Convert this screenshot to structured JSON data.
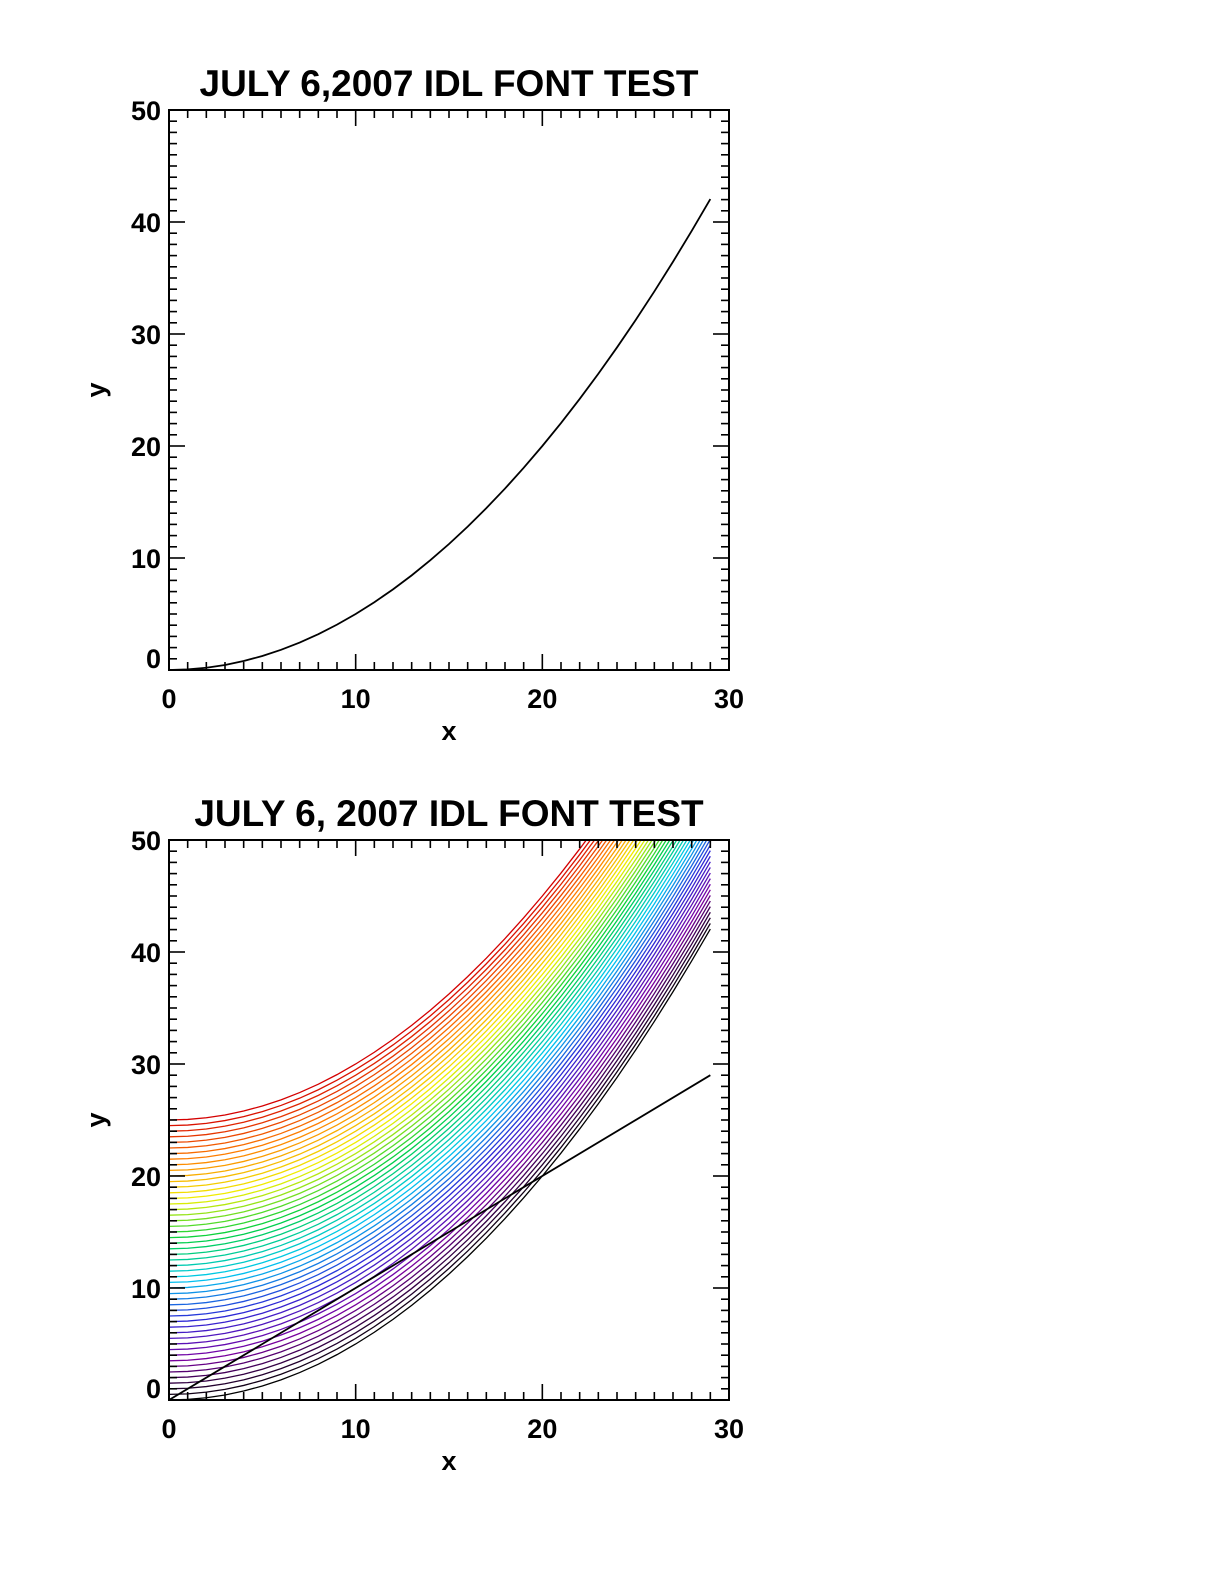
{
  "chart_data": [
    {
      "type": "line",
      "title": "JULY 6,2007 IDL FONT TEST",
      "xlabel": "x",
      "ylabel": "y",
      "xlim": [
        0,
        30
      ],
      "ylim": [
        0,
        50
      ],
      "x_ticks": [
        "0",
        "10",
        "20",
        "30"
      ],
      "y_ticks": [
        "0",
        "10",
        "20",
        "30",
        "40",
        "50"
      ],
      "grid": false,
      "series": [
        {
          "color": "#000000",
          "x": [
            0,
            1,
            2,
            3,
            4,
            5,
            6,
            7,
            8,
            9,
            10,
            11,
            12,
            13,
            14,
            15,
            16,
            17,
            18,
            19,
            20,
            21,
            22,
            23,
            24,
            25,
            26,
            27,
            28,
            29
          ],
          "y": [
            0,
            0.05,
            0.2,
            0.45,
            0.8,
            1.25,
            1.8,
            2.45,
            3.2,
            4.05,
            5,
            6.05,
            7.2,
            8.45,
            9.8,
            11.25,
            12.8,
            14.45,
            16.2,
            18.05,
            20,
            22.05,
            24.2,
            26.45,
            28.8,
            31.25,
            33.8,
            36.45,
            39.2,
            42.05
          ]
        }
      ]
    },
    {
      "type": "line",
      "title": "JULY 6, 2007 IDL FONT TEST",
      "xlabel": "x",
      "ylabel": "y",
      "xlim": [
        0,
        30
      ],
      "ylim": [
        0,
        50
      ],
      "x_ticks": [
        "0",
        "10",
        "20",
        "30"
      ],
      "y_ticks": [
        "0",
        "10",
        "20",
        "30",
        "40",
        "50"
      ],
      "grid": false,
      "curve_family": {
        "description_of_rule": "y = 0.05*x^2 + offset, one curve per offset, clipped at y = 50",
        "offsets": [
          0,
          0.5,
          1,
          1.5,
          2,
          2.5,
          3,
          3.5,
          4,
          4.5,
          5,
          5.5,
          6,
          6.5,
          7,
          7.5,
          8,
          8.5,
          9,
          9.5,
          10,
          10.5,
          11,
          11.5,
          12,
          12.5,
          13,
          13.5,
          14,
          14.5,
          15,
          15.5,
          16,
          16.5,
          17,
          17.5,
          18,
          18.5,
          19,
          19.5,
          20,
          20.5,
          21,
          21.5,
          22,
          22.5,
          23,
          23.5,
          24,
          24.5,
          25
        ],
        "color_stops": [
          "#000000",
          "#7a00a0",
          "#2a2ad8",
          "#00c8f0",
          "#00d040",
          "#f0f000",
          "#ff8000",
          "#d40000"
        ],
        "x": [
          0,
          1,
          2,
          3,
          4,
          5,
          6,
          7,
          8,
          9,
          10,
          11,
          12,
          13,
          14,
          15,
          16,
          17,
          18,
          19,
          20,
          21,
          22,
          23,
          24,
          25,
          26,
          27,
          28,
          29
        ]
      },
      "series": [
        {
          "color": "#000000",
          "x": [
            0,
            29
          ],
          "y": [
            0,
            29
          ]
        }
      ]
    }
  ]
}
